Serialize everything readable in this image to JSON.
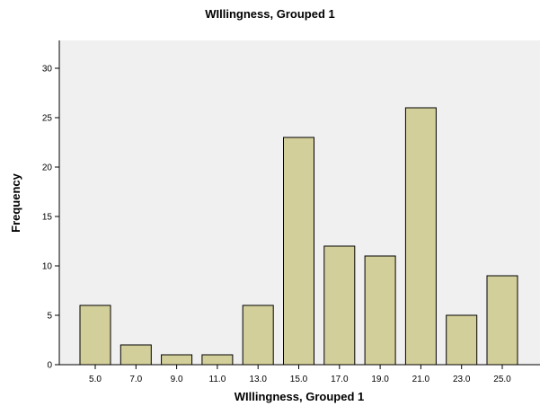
{
  "chart_data": {
    "type": "bar",
    "title": "WIllingness, Grouped 1",
    "xlabel": "WIllingness, Grouped 1",
    "ylabel": "Frequency",
    "categories": [
      "5.0",
      "7.0",
      "9.0",
      "11.0",
      "13.0",
      "15.0",
      "17.0",
      "19.0",
      "21.0",
      "23.0",
      "25.0"
    ],
    "values": [
      6,
      2,
      1,
      1,
      6,
      23,
      12,
      11,
      26,
      5,
      9
    ],
    "ylim": [
      0,
      30
    ],
    "yticks": [
      "0",
      "5",
      "10",
      "15",
      "20",
      "25",
      "30"
    ],
    "grid": false,
    "colors": {
      "bar_fill": "#d3cf9a",
      "bar_stroke": "#000000",
      "plot_bg": "#f0f0f0"
    }
  }
}
